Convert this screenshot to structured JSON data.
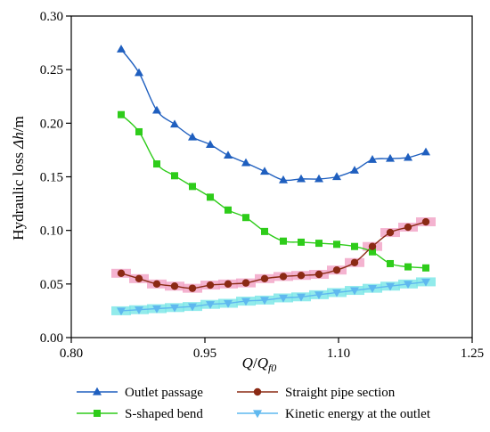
{
  "chart_data": {
    "type": "line",
    "xlabel": {
      "main": "Q",
      "slash": "/",
      "sub_main": "Q",
      "sub": "f0"
    },
    "ylabel": {
      "prefix": "Hydraulic loss ",
      "sym": "Δh",
      "unit": "/m"
    },
    "xlim": [
      0.8,
      1.25
    ],
    "ylim": [
      0.0,
      0.3
    ],
    "xticks": [
      "0.80",
      "0.95",
      "1.10",
      "1.25"
    ],
    "xtick_values": [
      0.8,
      0.95,
      1.1,
      1.25
    ],
    "yticks": [
      "0.00",
      "0.05",
      "0.10",
      "0.15",
      "0.20",
      "0.25",
      "0.30"
    ],
    "ytick_values": [
      0.0,
      0.05,
      0.1,
      0.15,
      0.2,
      0.25,
      0.3
    ],
    "legend_position": "bottom",
    "series": [
      {
        "name": "Outlet passage",
        "color": "#1f5fbf",
        "marker": "triangle-up",
        "points": [
          [
            0.856,
            0.269
          ],
          [
            0.876,
            0.247
          ],
          [
            0.896,
            0.212
          ],
          [
            0.916,
            0.199
          ],
          [
            0.936,
            0.187
          ],
          [
            0.956,
            0.18
          ],
          [
            0.976,
            0.17
          ],
          [
            0.996,
            0.163
          ],
          [
            1.017,
            0.155
          ],
          [
            1.038,
            0.147
          ],
          [
            1.058,
            0.148
          ],
          [
            1.078,
            0.148
          ],
          [
            1.098,
            0.15
          ],
          [
            1.118,
            0.156
          ],
          [
            1.138,
            0.166
          ],
          [
            1.158,
            0.167
          ],
          [
            1.178,
            0.168
          ],
          [
            1.198,
            0.173
          ]
        ]
      },
      {
        "name": "S-shaped bend",
        "color": "#2ecc1a",
        "marker": "square",
        "points": [
          [
            0.856,
            0.208
          ],
          [
            0.876,
            0.192
          ],
          [
            0.896,
            0.162
          ],
          [
            0.916,
            0.151
          ],
          [
            0.936,
            0.141
          ],
          [
            0.956,
            0.131
          ],
          [
            0.976,
            0.119
          ],
          [
            0.996,
            0.112
          ],
          [
            1.017,
            0.099
          ],
          [
            1.038,
            0.09
          ],
          [
            1.058,
            0.089
          ],
          [
            1.078,
            0.088
          ],
          [
            1.098,
            0.087
          ],
          [
            1.118,
            0.085
          ],
          [
            1.138,
            0.08
          ],
          [
            1.158,
            0.069
          ],
          [
            1.178,
            0.066
          ],
          [
            1.198,
            0.065
          ]
        ]
      },
      {
        "name": "Straight pipe section",
        "color": "#8b2a14",
        "marker": "circle",
        "points": [
          [
            0.856,
            0.06
          ],
          [
            0.876,
            0.055
          ],
          [
            0.896,
            0.05
          ],
          [
            0.916,
            0.048
          ],
          [
            0.936,
            0.046
          ],
          [
            0.956,
            0.049
          ],
          [
            0.976,
            0.05
          ],
          [
            0.996,
            0.051
          ],
          [
            1.017,
            0.055
          ],
          [
            1.038,
            0.057
          ],
          [
            1.058,
            0.058
          ],
          [
            1.078,
            0.059
          ],
          [
            1.098,
            0.063
          ],
          [
            1.118,
            0.07
          ],
          [
            1.138,
            0.085
          ],
          [
            1.158,
            0.098
          ],
          [
            1.178,
            0.103
          ],
          [
            1.198,
            0.108
          ]
        ]
      },
      {
        "name": "Kinetic energy at the outlet",
        "color": "#5fb8ef",
        "marker": "triangle-down",
        "points": [
          [
            0.856,
            0.025
          ],
          [
            0.876,
            0.026
          ],
          [
            0.896,
            0.027
          ],
          [
            0.916,
            0.028
          ],
          [
            0.936,
            0.029
          ],
          [
            0.956,
            0.031
          ],
          [
            0.976,
            0.032
          ],
          [
            0.996,
            0.034
          ],
          [
            1.017,
            0.035
          ],
          [
            1.038,
            0.037
          ],
          [
            1.058,
            0.038
          ],
          [
            1.078,
            0.04
          ],
          [
            1.098,
            0.042
          ],
          [
            1.118,
            0.044
          ],
          [
            1.138,
            0.046
          ],
          [
            1.158,
            0.048
          ],
          [
            1.178,
            0.05
          ],
          [
            1.198,
            0.052
          ]
        ]
      }
    ],
    "error_band_colors": {
      "Straight pipe section": "#f2a6c8",
      "Kinetic energy at the outlet": "#7fe8e8"
    }
  }
}
